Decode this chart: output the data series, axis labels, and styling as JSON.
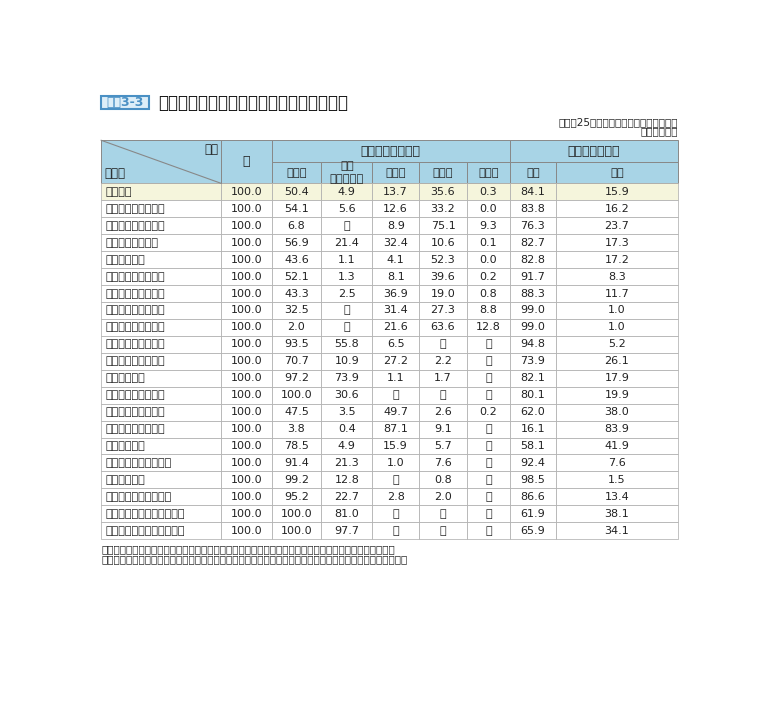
{
  "title": "俸給表別、最終学歴別及び性別人員構成比",
  "title_label": "資料3-3",
  "subtitle1": "（平成25年国家公務員給与等実態調査）",
  "subtitle2": "（単位：％）",
  "col_headers": [
    "大学卒",
    "うち\n大学院修了",
    "短大卒",
    "高校卒",
    "中学卒",
    "男性",
    "女性"
  ],
  "rows": [
    {
      "label": "全俸給表",
      "highlight": true,
      "vals": [
        "100.0",
        "50.4",
        "4.9",
        "13.7",
        "35.6",
        "0.3",
        "84.1",
        "15.9"
      ]
    },
    {
      "label": "行政職俸給表（一）",
      "highlight": false,
      "vals": [
        "100.0",
        "54.1",
        "5.6",
        "12.6",
        "33.2",
        "0.0",
        "83.8",
        "16.2"
      ]
    },
    {
      "label": "行政職俸給表（二）",
      "highlight": false,
      "vals": [
        "100.0",
        "6.8",
        "－",
        "8.9",
        "75.1",
        "9.3",
        "76.3",
        "23.7"
      ]
    },
    {
      "label": "専門行政職俸給表",
      "highlight": false,
      "vals": [
        "100.0",
        "56.9",
        "21.4",
        "32.4",
        "10.6",
        "0.1",
        "82.7",
        "17.3"
      ]
    },
    {
      "label": "税務職俸給表",
      "highlight": false,
      "vals": [
        "100.0",
        "43.6",
        "1.1",
        "4.1",
        "52.3",
        "0.0",
        "82.8",
        "17.2"
      ]
    },
    {
      "label": "公安職俸給表（一）",
      "highlight": false,
      "vals": [
        "100.0",
        "52.1",
        "1.3",
        "8.1",
        "39.6",
        "0.2",
        "91.7",
        "8.3"
      ]
    },
    {
      "label": "公安職俸給表（二）",
      "highlight": false,
      "vals": [
        "100.0",
        "43.3",
        "2.5",
        "36.9",
        "19.0",
        "0.8",
        "88.3",
        "11.7"
      ]
    },
    {
      "label": "海事職俸給表（一）",
      "highlight": false,
      "vals": [
        "100.0",
        "32.5",
        "－",
        "31.4",
        "27.3",
        "8.8",
        "99.0",
        "1.0"
      ]
    },
    {
      "label": "海事職俸給表（二）",
      "highlight": false,
      "vals": [
        "100.0",
        "2.0",
        "－",
        "21.6",
        "63.6",
        "12.8",
        "99.0",
        "1.0"
      ]
    },
    {
      "label": "教育職俸給表（一）",
      "highlight": false,
      "vals": [
        "100.0",
        "93.5",
        "55.8",
        "6.5",
        "－",
        "－",
        "94.8",
        "5.2"
      ]
    },
    {
      "label": "教育職俸給表（二）",
      "highlight": false,
      "vals": [
        "100.0",
        "70.7",
        "10.9",
        "27.2",
        "2.2",
        "－",
        "73.9",
        "26.1"
      ]
    },
    {
      "label": "研究職俸給表",
      "highlight": false,
      "vals": [
        "100.0",
        "97.2",
        "73.9",
        "1.1",
        "1.7",
        "－",
        "82.1",
        "17.9"
      ]
    },
    {
      "label": "医療職俸給表（一）",
      "highlight": false,
      "vals": [
        "100.0",
        "100.0",
        "30.6",
        "－",
        "－",
        "－",
        "80.1",
        "19.9"
      ]
    },
    {
      "label": "医療職俸給表（二）",
      "highlight": false,
      "vals": [
        "100.0",
        "47.5",
        "3.5",
        "49.7",
        "2.6",
        "0.2",
        "62.0",
        "38.0"
      ]
    },
    {
      "label": "医療職俸給表（三）",
      "highlight": false,
      "vals": [
        "100.0",
        "3.8",
        "0.4",
        "87.1",
        "9.1",
        "－",
        "16.1",
        "83.9"
      ]
    },
    {
      "label": "福祉職俸給表",
      "highlight": false,
      "vals": [
        "100.0",
        "78.5",
        "4.9",
        "15.9",
        "5.7",
        "－",
        "58.1",
        "41.9"
      ]
    },
    {
      "label": "専門スタッフ職俸給表",
      "highlight": false,
      "vals": [
        "100.0",
        "91.4",
        "21.3",
        "1.0",
        "7.6",
        "－",
        "92.4",
        "7.6"
      ]
    },
    {
      "label": "指定職俸給表",
      "highlight": false,
      "vals": [
        "100.0",
        "99.2",
        "12.8",
        "－",
        "0.8",
        "－",
        "98.5",
        "1.5"
      ]
    },
    {
      "label": "特定任期付職員俸給表",
      "highlight": false,
      "vals": [
        "100.0",
        "95.2",
        "22.7",
        "2.8",
        "2.0",
        "－",
        "86.6",
        "13.4"
      ]
    },
    {
      "label": "第一号任期付研究員俸給表",
      "highlight": false,
      "vals": [
        "100.0",
        "100.0",
        "81.0",
        "－",
        "－",
        "－",
        "61.9",
        "38.1"
      ]
    },
    {
      "label": "第二号任期付研究員俸給表",
      "highlight": false,
      "vals": [
        "100.0",
        "100.0",
        "97.7",
        "－",
        "－",
        "－",
        "65.9",
        "34.1"
      ]
    }
  ],
  "notes": [
    "（注）１　「大学卒」には修士課程及び博士課程修了者を、「短大卒」には高等専門学校卒業者を含む。",
    "　　　２　構成比は、小数点以下第２位を四捨五入しているため、内訳の合計が計と一致しない場合がある。"
  ],
  "header_bg": "#a8d4e6",
  "highlight_bg": "#f5f5dc",
  "white_bg": "#ffffff",
  "border_color": "#888888",
  "title_box_border": "#4a90c4",
  "title_box_fill": "#ddeef8"
}
